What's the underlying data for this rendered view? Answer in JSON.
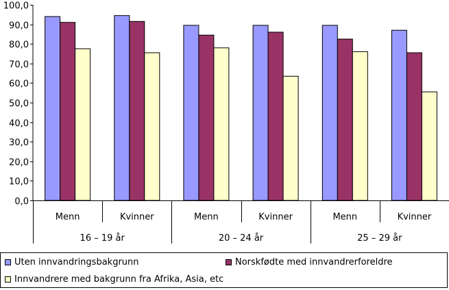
{
  "chart_data": {
    "type": "bar",
    "ylim": [
      0,
      100
    ],
    "ytick_step": 10,
    "ytick_labels": [
      "0,0",
      "10,0",
      "20,0",
      "30,0",
      "40,0",
      "50,0",
      "60,0",
      "70,0",
      "80,0",
      "90,0",
      "100,0"
    ],
    "grid": false,
    "legend_position": "bottom",
    "groups": [
      "16 – 19 år",
      "20 – 24 år",
      "25 – 29 år"
    ],
    "categories": [
      "Menn",
      "Kvinner",
      "Menn",
      "Kvinner",
      "Menn",
      "Kvinner"
    ],
    "series": [
      {
        "name": "Uten innvandringsbakgrunn",
        "color": "#9999ff",
        "values": [
          94.0,
          94.5,
          89.5,
          89.5,
          89.5,
          87.0
        ]
      },
      {
        "name": "Norskfødte med innvandrerforeldre",
        "color": "#993366",
        "values": [
          91.0,
          91.5,
          84.5,
          86.0,
          82.5,
          75.5
        ]
      },
      {
        "name": "Innvandrere med bakgrunn fra Afrika, Asia, etc",
        "color": "#ffffcc",
        "values": [
          77.5,
          75.5,
          78.0,
          63.5,
          76.0,
          55.5
        ]
      }
    ]
  }
}
